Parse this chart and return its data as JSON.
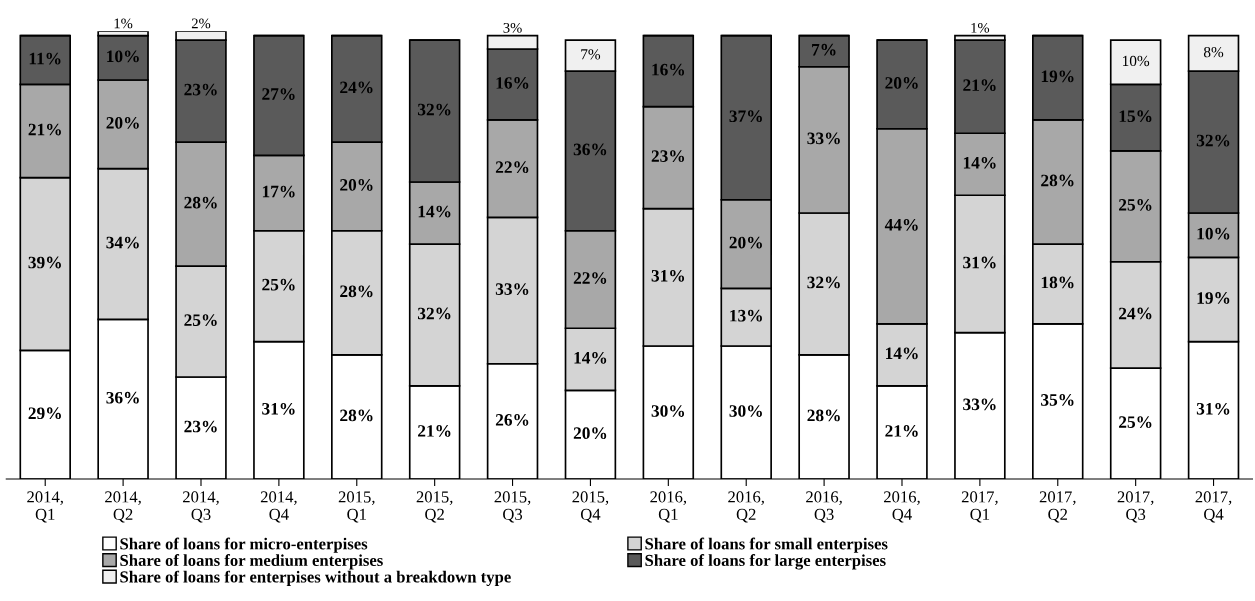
{
  "chart_data": {
    "type": "bar",
    "stacked": true,
    "legend": "bottom",
    "grid": false,
    "categories": [
      "2014,\nQ1",
      "2014,\nQ2",
      "2014,\nQ3",
      "2014,\nQ4",
      "2015,\nQ1",
      "2015,\nQ2",
      "2015,\nQ3",
      "2015,\nQ4",
      "2016,\nQ1",
      "2016,\nQ2",
      "2016,\nQ3",
      "2016,\nQ4",
      "2017,\nQ1",
      "2017,\nQ2",
      "2017,\nQ3",
      "2017,\nQ4"
    ],
    "series": [
      {
        "name": "Share of loans for micro-enterpises",
        "color": "#ffffff",
        "values": [
          29,
          36,
          23,
          31,
          28,
          21,
          26,
          20,
          30,
          30,
          28,
          21,
          33,
          35,
          25,
          31
        ],
        "value_labels": [
          "29%",
          "36%",
          "23%",
          "31%",
          "28%",
          "21%",
          "26%",
          "20%",
          "30%",
          "30%",
          "28%",
          "21%",
          "33%",
          "35%",
          "25%",
          "31%"
        ]
      },
      {
        "name": "Share of loans for small enterpises",
        "color": "#d4d4d4",
        "values": [
          39,
          34,
          25,
          25,
          28,
          32,
          33,
          14,
          31,
          13,
          32,
          14,
          31,
          18,
          24,
          19
        ],
        "value_labels": [
          "39%",
          "34%",
          "25%",
          "25%",
          "28%",
          "32%",
          "33%",
          "14%",
          "31%",
          "13%",
          "32%",
          "14%",
          "31%",
          "18%",
          "24%",
          "19%"
        ]
      },
      {
        "name": "Share of loans for medium enterpises",
        "color": "#a8a8a8",
        "values": [
          21,
          20,
          28,
          17,
          20,
          14,
          22,
          22,
          23,
          20,
          33,
          44,
          14,
          28,
          25,
          10
        ],
        "value_labels": [
          "21%",
          "20%",
          "28%",
          "17%",
          "20%",
          "14%",
          "22%",
          "22%",
          "23%",
          "20%",
          "33%",
          "44%",
          "14%",
          "28%",
          "25%",
          "10%"
        ]
      },
      {
        "name": "Share of loans for large enterpises",
        "color": "#5a5a5a",
        "values": [
          11,
          10,
          23,
          27,
          24,
          32,
          16,
          36,
          16,
          37,
          7,
          20,
          21,
          19,
          15,
          32
        ],
        "value_labels": [
          "11%",
          "10%",
          "23%",
          "27%",
          "24%",
          "32%",
          "16%",
          "36%",
          "16%",
          "37%",
          "7%",
          "20%",
          "21%",
          "19%",
          "15%",
          "32%"
        ]
      },
      {
        "name": "Share of loans for enterpises without a breakdown type",
        "color": "#f0f0f0",
        "values": [
          null,
          1,
          2,
          null,
          null,
          null,
          3,
          7,
          null,
          null,
          null,
          null,
          1,
          null,
          10,
          8
        ],
        "value_labels": [
          null,
          "1%",
          "2%",
          null,
          null,
          null,
          "3%",
          "7%",
          null,
          null,
          null,
          null,
          "1%",
          null,
          "10%",
          "8%"
        ]
      }
    ]
  }
}
